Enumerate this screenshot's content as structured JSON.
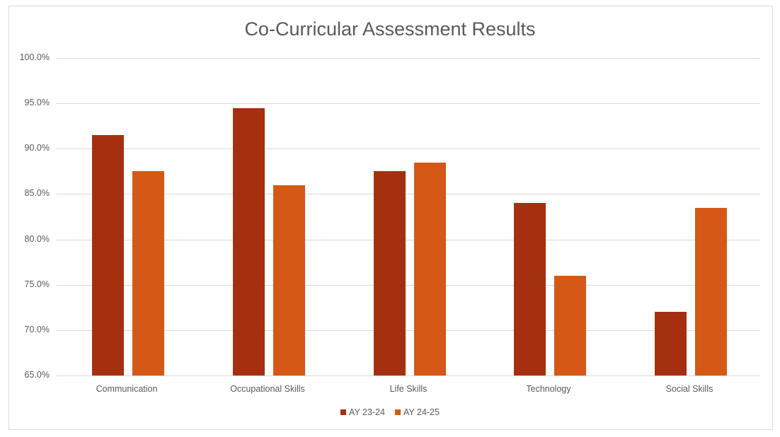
{
  "chart_data": {
    "type": "bar",
    "title": "Co-Curricular Assessment Results",
    "xlabel": "",
    "ylabel": "",
    "categories": [
      "Communication",
      "Occupational Skills",
      "Life Skills",
      "Technology",
      "Social Skills"
    ],
    "series": [
      {
        "name": "AY 23-24",
        "color": "#A5300F",
        "values": [
          91.5,
          94.5,
          87.5,
          84.0,
          72.0
        ]
      },
      {
        "name": "AY 24-25",
        "color": "#D55816",
        "values": [
          87.5,
          86.0,
          88.5,
          76.0,
          83.5
        ]
      }
    ],
    "ylim": [
      65,
      100
    ],
    "yticks": [
      "100.0%",
      "95.0%",
      "90.0%",
      "85.0%",
      "80.0%",
      "75.0%",
      "70.0%",
      "65.0%"
    ],
    "grid": true,
    "legend_position": "bottom"
  }
}
